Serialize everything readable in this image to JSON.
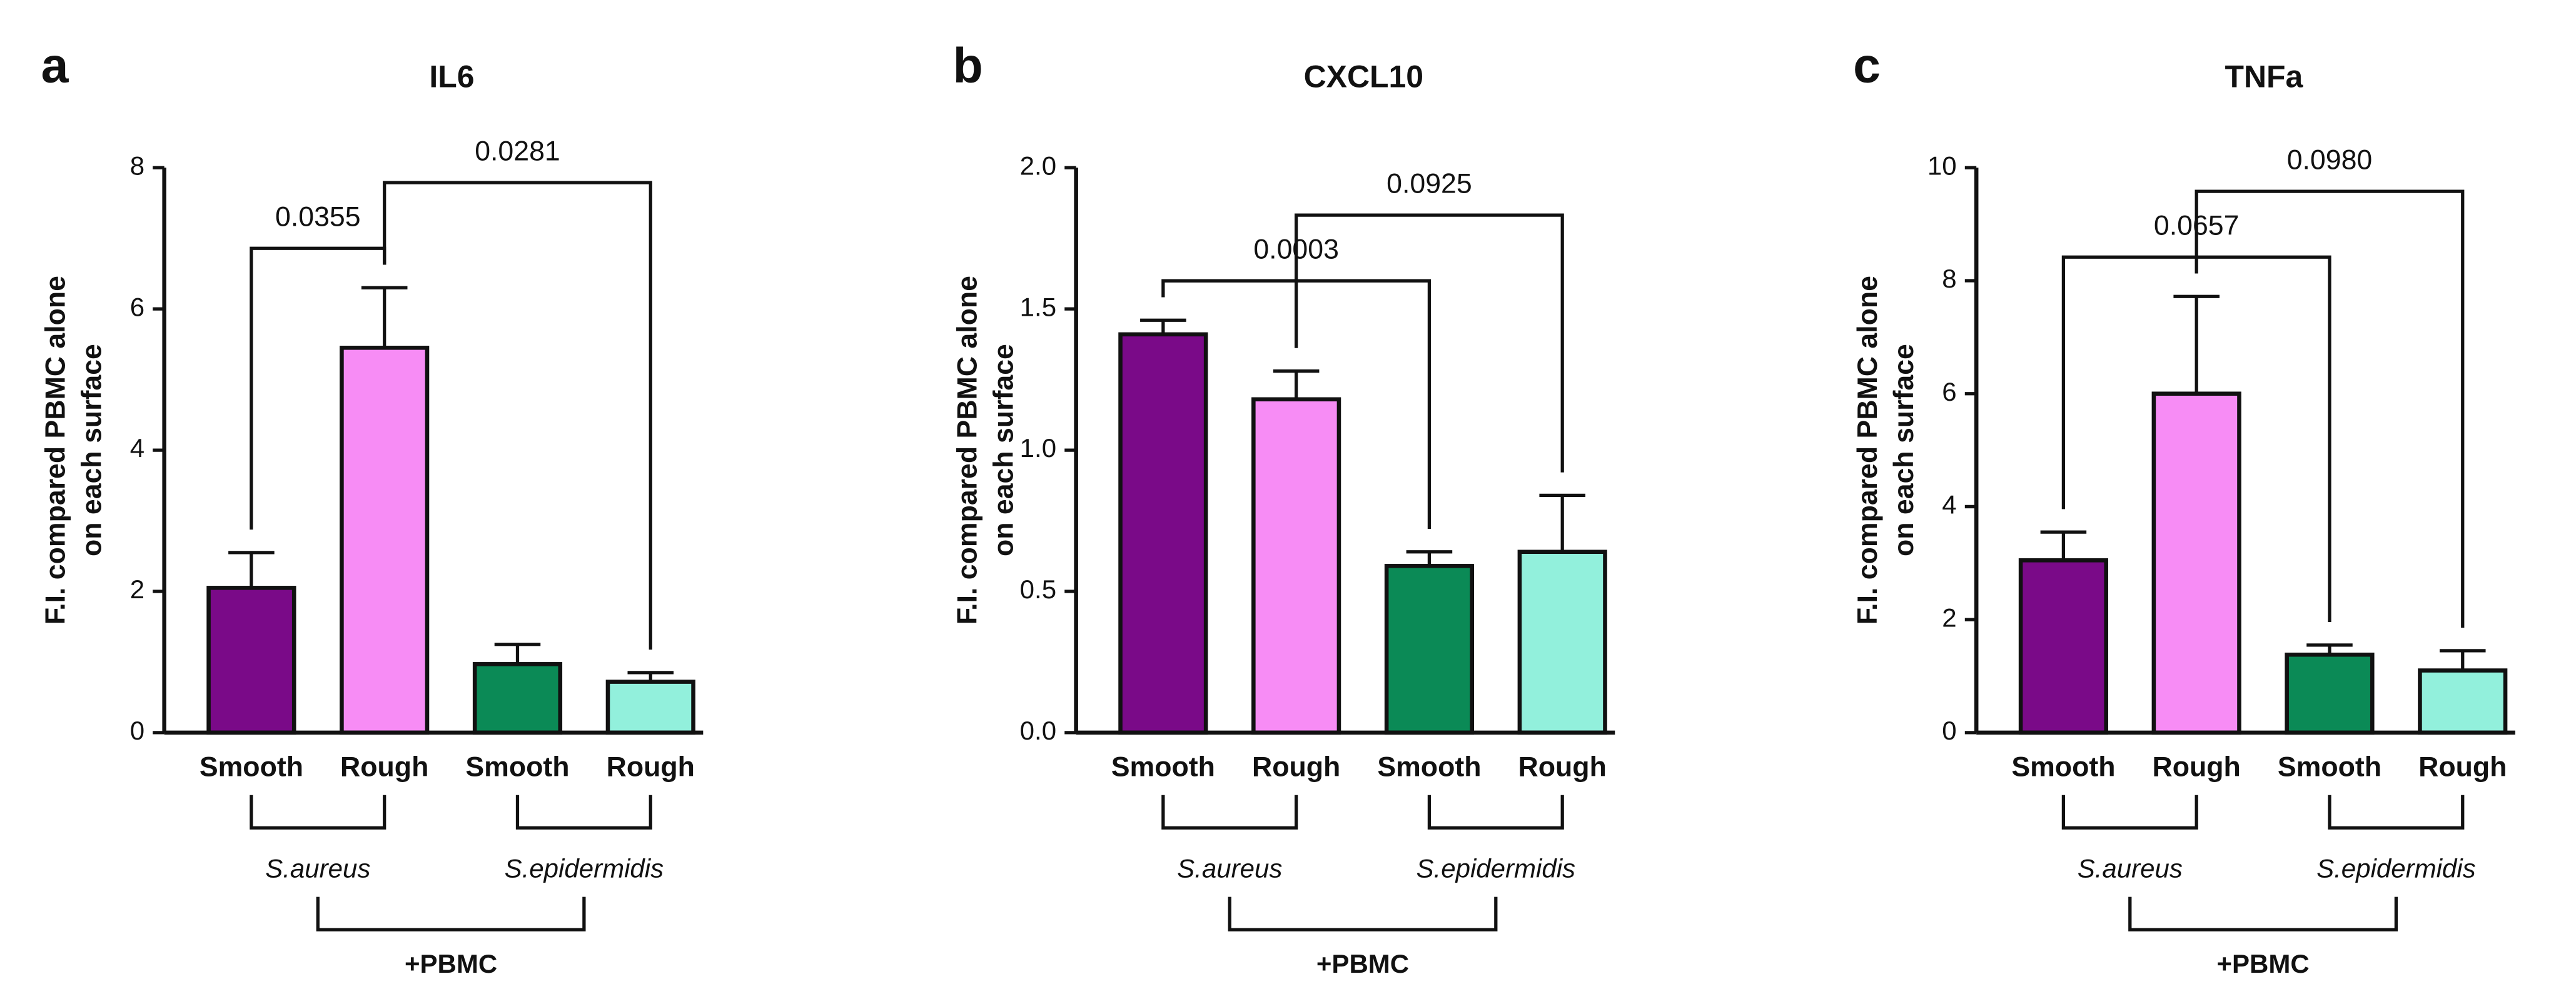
{
  "chart_data": [
    {
      "type": "bar",
      "panel_label": "a",
      "title": "IL6",
      "y_label": [
        "F.I. compared PBMC alone",
        "on each surface"
      ],
      "categories": [
        "Smooth",
        "Rough",
        "Smooth",
        "Rough"
      ],
      "values": [
        2.05,
        5.45,
        0.97,
        0.72
      ],
      "errors": [
        0.5,
        0.85,
        0.28,
        0.13
      ],
      "colors": [
        "#7a0a88",
        "#f78cf5",
        "#0b8a56",
        "#92f0dc"
      ],
      "ylim": [
        0,
        8
      ],
      "yticks": [
        0,
        2,
        4,
        6,
        8
      ],
      "groups": [
        {
          "label": "S.aureus",
          "members": [
            0,
            1
          ]
        },
        {
          "label": "S.epidermidis",
          "members": [
            2,
            3
          ]
        }
      ],
      "outer_group": "+PBMC",
      "comparisons": [
        {
          "label": "0.0355",
          "between": [
            0,
            1
          ]
        },
        {
          "label": "0.0281",
          "between": [
            1,
            3
          ]
        }
      ]
    },
    {
      "type": "bar",
      "panel_label": "b",
      "title": "CXCL10",
      "y_label": [
        "F.I. compared PBMC alone",
        "on each surface"
      ],
      "categories": [
        "Smooth",
        "Rough",
        "Smooth",
        "Rough"
      ],
      "values": [
        1.41,
        1.18,
        0.59,
        0.64
      ],
      "errors": [
        0.05,
        0.1,
        0.05,
        0.2
      ],
      "colors": [
        "#7a0a88",
        "#f78cf5",
        "#0b8a56",
        "#92f0dc"
      ],
      "ylim": [
        0,
        2
      ],
      "yticks": [
        {
          "value": 0,
          "label": "0.0"
        },
        0.5,
        {
          "value": 1,
          "label": "1.0"
        },
        1.5,
        {
          "value": 2,
          "label": "2.0"
        }
      ],
      "groups": [
        {
          "label": "S.aureus",
          "members": [
            0,
            1
          ]
        },
        {
          "label": "S.epidermidis",
          "members": [
            2,
            3
          ]
        }
      ],
      "outer_group": "+PBMC",
      "comparisons": [
        {
          "label": "0.0003",
          "between": [
            0,
            2
          ]
        },
        {
          "label": "0.0925",
          "between": [
            1,
            3
          ]
        }
      ]
    },
    {
      "type": "bar",
      "panel_label": "c",
      "title": "TNFa",
      "y_label": [
        "F.I. compared PBMC alone",
        "on each surface"
      ],
      "categories": [
        "Smooth",
        "Rough",
        "Smooth",
        "Rough"
      ],
      "values": [
        3.05,
        6.0,
        1.38,
        1.1
      ],
      "errors": [
        0.5,
        1.72,
        0.17,
        0.35
      ],
      "colors": [
        "#7a0a88",
        "#f78cf5",
        "#0b8a56",
        "#92f0dc"
      ],
      "ylim": [
        0,
        10
      ],
      "yticks": [
        0,
        2,
        4,
        6,
        8,
        10
      ],
      "groups": [
        {
          "label": "S.aureus",
          "members": [
            0,
            1
          ]
        },
        {
          "label": "S.epidermidis",
          "members": [
            2,
            3
          ]
        }
      ],
      "outer_group": "+PBMC",
      "comparisons": [
        {
          "label": "0.0657",
          "between": [
            0,
            2
          ]
        },
        {
          "label": "0.0980",
          "between": [
            1,
            3
          ]
        }
      ]
    }
  ]
}
